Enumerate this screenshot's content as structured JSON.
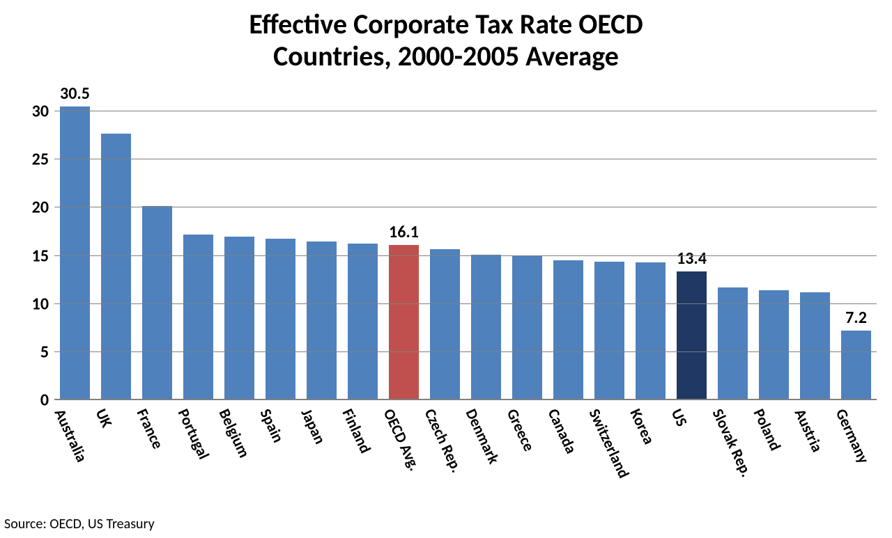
{
  "chart": {
    "type": "bar",
    "title_line1": "Effective Corporate Tax Rate OECD",
    "title_line2": "Countries, 2000-2005 Average",
    "title_fontsize": 40,
    "source": "Source: OECD, US Treasury",
    "source_fontsize": 20,
    "background_color": "#ffffff",
    "grid_color": "#7f7f7f",
    "axis_color": "#808080",
    "ylim_min": 0,
    "ylim_max": 30,
    "ytick_step": 5,
    "ytick_fontsize": 24,
    "xlabel_fontsize": 22,
    "xlabel_rotation_deg": 65,
    "value_label_fontsize": 24,
    "bar_width_ratio": 0.72,
    "default_bar_color": "#4f81bd",
    "highlight_colors": {
      "oecd_avg": "#c0504d",
      "us": "#1f3864"
    },
    "bars": [
      {
        "label": "Australia",
        "value": 30.5,
        "color": "#4f81bd",
        "show_value": true
      },
      {
        "label": "UK",
        "value": 27.7,
        "color": "#4f81bd",
        "show_value": false
      },
      {
        "label": "France",
        "value": 20.2,
        "color": "#4f81bd",
        "show_value": false
      },
      {
        "label": "Portugal",
        "value": 17.2,
        "color": "#4f81bd",
        "show_value": false
      },
      {
        "label": "Belgium",
        "value": 17.0,
        "color": "#4f81bd",
        "show_value": false
      },
      {
        "label": "Spain",
        "value": 16.8,
        "color": "#4f81bd",
        "show_value": false
      },
      {
        "label": "Japan",
        "value": 16.5,
        "color": "#4f81bd",
        "show_value": false
      },
      {
        "label": "Finland",
        "value": 16.3,
        "color": "#4f81bd",
        "show_value": false
      },
      {
        "label": "OECD Avg.",
        "value": 16.1,
        "color": "#c0504d",
        "show_value": true
      },
      {
        "label": "Czech Rep.",
        "value": 15.7,
        "color": "#4f81bd",
        "show_value": false
      },
      {
        "label": "Denmark",
        "value": 15.1,
        "color": "#4f81bd",
        "show_value": false
      },
      {
        "label": "Greece",
        "value": 15.0,
        "color": "#4f81bd",
        "show_value": false
      },
      {
        "label": "Canada",
        "value": 14.5,
        "color": "#4f81bd",
        "show_value": false
      },
      {
        "label": "Switzerland",
        "value": 14.4,
        "color": "#4f81bd",
        "show_value": false
      },
      {
        "label": "Korea",
        "value": 14.3,
        "color": "#4f81bd",
        "show_value": false
      },
      {
        "label": "US",
        "value": 13.4,
        "color": "#1f3864",
        "show_value": true
      },
      {
        "label": "Slovak Rep.",
        "value": 11.7,
        "color": "#4f81bd",
        "show_value": false
      },
      {
        "label": "Poland",
        "value": 11.4,
        "color": "#4f81bd",
        "show_value": false
      },
      {
        "label": "Austria",
        "value": 11.2,
        "color": "#4f81bd",
        "show_value": false
      },
      {
        "label": "Germany",
        "value": 7.2,
        "color": "#4f81bd",
        "show_value": true
      }
    ]
  }
}
